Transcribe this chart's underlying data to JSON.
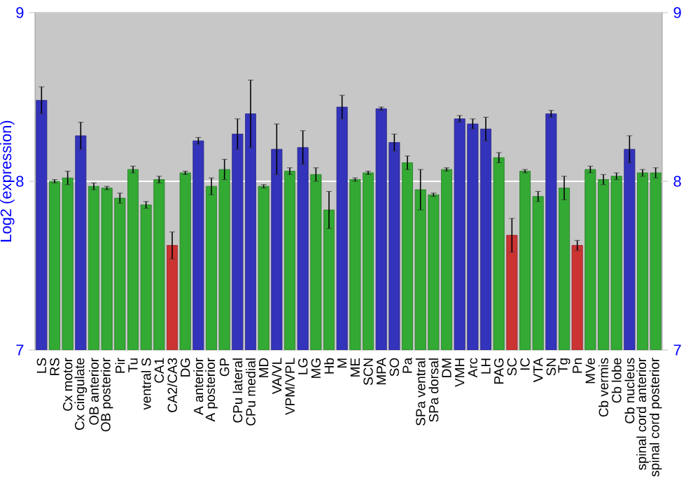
{
  "chart_data": {
    "type": "bar",
    "ylabel": "Log2 (expression)",
    "categories": [
      "LS",
      "RS",
      "Cx motor",
      "Cx cingulate",
      "OB anterior",
      "OB posterior",
      "Pir",
      "Tu",
      "ventral S",
      "CA1",
      "CA2/CA3",
      "DG",
      "A anterior",
      "A posterior",
      "GP",
      "CPu lateral",
      "CPu medial",
      "MD",
      "VA/VL",
      "VPM/VPL",
      "LG",
      "MG",
      "Hb",
      "M",
      "ME",
      "SCN",
      "MPA",
      "SO",
      "Pa",
      "SPa ventral",
      "SPa dorsal",
      "DM",
      "VMH",
      "Arc",
      "LH",
      "PAG",
      "SC",
      "IC",
      "VTA",
      "SN",
      "Tg",
      "Pn",
      "MVe",
      "Cb vermis",
      "Cb lobe",
      "Cb nucleus",
      "spinal cord anterior",
      "spinal cord posterior"
    ],
    "values": [
      8.48,
      8.0,
      8.02,
      8.27,
      7.97,
      7.96,
      7.9,
      8.07,
      7.86,
      8.01,
      7.62,
      8.05,
      8.24,
      7.97,
      8.07,
      8.28,
      8.4,
      7.97,
      8.19,
      8.06,
      8.2,
      8.04,
      7.83,
      8.44,
      8.01,
      8.05,
      8.43,
      8.23,
      8.11,
      7.95,
      7.92,
      8.07,
      8.37,
      8.34,
      8.31,
      8.14,
      7.68,
      8.06,
      7.91,
      8.4,
      7.96,
      7.62,
      8.07,
      8.01,
      8.03,
      8.19,
      8.05,
      8.05
    ],
    "errors": [
      0.08,
      0.01,
      0.04,
      0.08,
      0.02,
      0.01,
      0.03,
      0.02,
      0.02,
      0.02,
      0.08,
      0.01,
      0.02,
      0.05,
      0.06,
      0.09,
      0.2,
      0.01,
      0.15,
      0.02,
      0.1,
      0.04,
      0.11,
      0.07,
      0.01,
      0.01,
      0.01,
      0.05,
      0.04,
      0.12,
      0.01,
      0.01,
      0.02,
      0.03,
      0.07,
      0.03,
      0.1,
      0.01,
      0.03,
      0.02,
      0.07,
      0.03,
      0.02,
      0.03,
      0.02,
      0.08,
      0.02,
      0.03
    ],
    "colors": [
      "#3333bb",
      "#33aa33",
      "#33aa33",
      "#3333bb",
      "#33aa33",
      "#33aa33",
      "#33aa33",
      "#33aa33",
      "#33aa33",
      "#33aa33",
      "#cc3333",
      "#33aa33",
      "#3333bb",
      "#33aa33",
      "#33aa33",
      "#3333bb",
      "#3333bb",
      "#33aa33",
      "#3333bb",
      "#33aa33",
      "#3333bb",
      "#33aa33",
      "#33aa33",
      "#3333bb",
      "#33aa33",
      "#33aa33",
      "#3333bb",
      "#3333bb",
      "#33aa33",
      "#33aa33",
      "#33aa33",
      "#33aa33",
      "#3333bb",
      "#3333bb",
      "#3333bb",
      "#33aa33",
      "#cc3333",
      "#33aa33",
      "#33aa33",
      "#3333bb",
      "#33aa33",
      "#cc3333",
      "#33aa33",
      "#33aa33",
      "#33aa33",
      "#3333bb",
      "#33aa33",
      "#33aa33"
    ],
    "ylim": [
      7,
      9
    ],
    "yticks": [
      7,
      8,
      9
    ],
    "y2lim": [
      7,
      9
    ],
    "y2ticks": [
      7,
      8,
      9
    ],
    "grid": "y"
  }
}
